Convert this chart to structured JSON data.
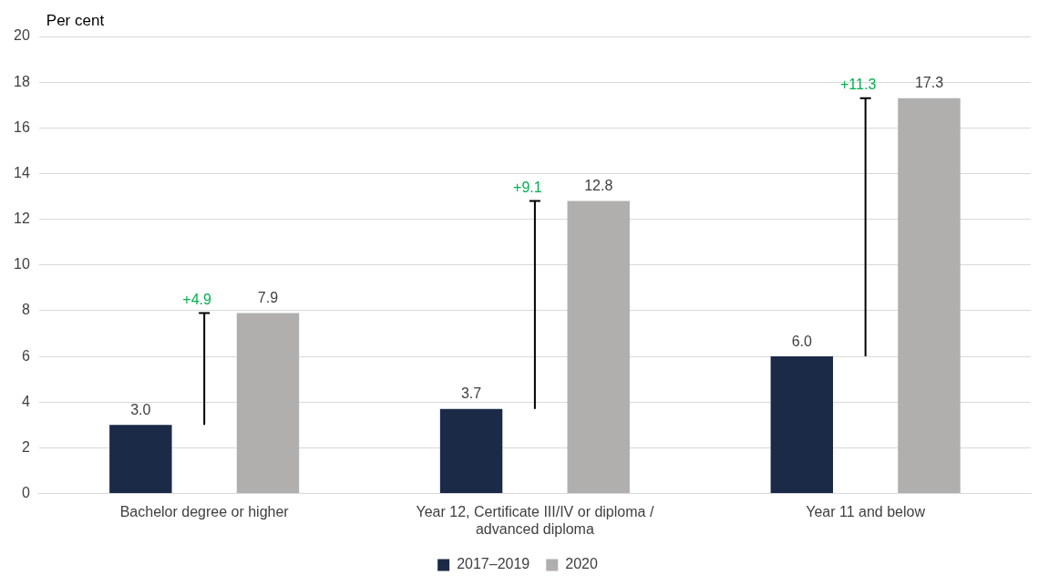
{
  "chart_data": {
    "type": "bar",
    "ylabel": "Per cent",
    "categories": [
      "Bachelor degree or higher",
      "Year 12, Certificate III/IV or diploma / advanced diploma",
      "Year 11 and below"
    ],
    "series": [
      {
        "name": "2017–2019",
        "color": "#1b2a47",
        "values": [
          3.0,
          3.7,
          6.0
        ]
      },
      {
        "name": "2020",
        "color": "#b0afae",
        "values": [
          7.9,
          12.8,
          17.3
        ]
      }
    ],
    "value_labels": [
      [
        "3.0",
        "3.7",
        "6.0"
      ],
      [
        "7.9",
        "12.8",
        "17.3"
      ]
    ],
    "annotations": [
      "+4.9",
      "+9.1",
      "+11.3"
    ],
    "ylim": [
      0,
      20
    ],
    "yticks": [
      0,
      2,
      4,
      6,
      8,
      10,
      12,
      14,
      16,
      18,
      20
    ],
    "grid": "y",
    "legend": "bottom"
  }
}
